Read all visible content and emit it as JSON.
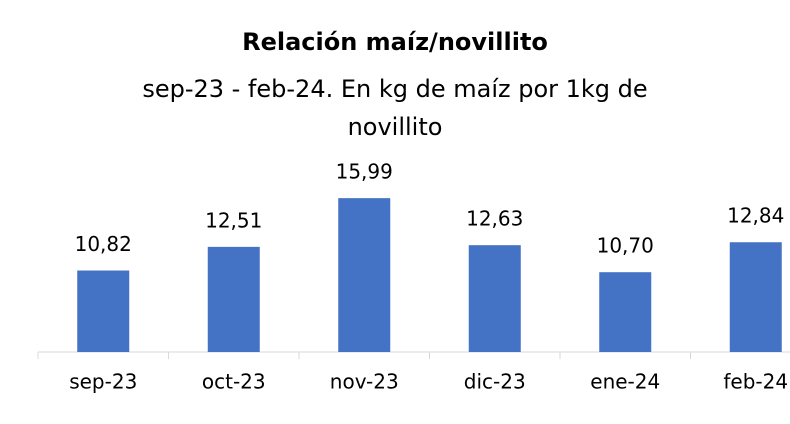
{
  "chart_data": {
    "type": "bar",
    "title": "Relación maíz/novillito",
    "subtitle": "sep-23 - feb-24. En kg de maíz por 1kg de novillito",
    "categories": [
      "sep-23",
      "oct-23",
      "nov-23",
      "dic-23",
      "ene-24",
      "feb-24"
    ],
    "values": [
      10.82,
      12.51,
      15.99,
      12.63,
      10.7,
      12.84
    ],
    "value_labels": [
      "10,82",
      "12,51",
      "15,99",
      "12,63",
      "10,70",
      "12,84"
    ],
    "color": "#4472c4",
    "ylim": [
      5,
      17
    ]
  }
}
